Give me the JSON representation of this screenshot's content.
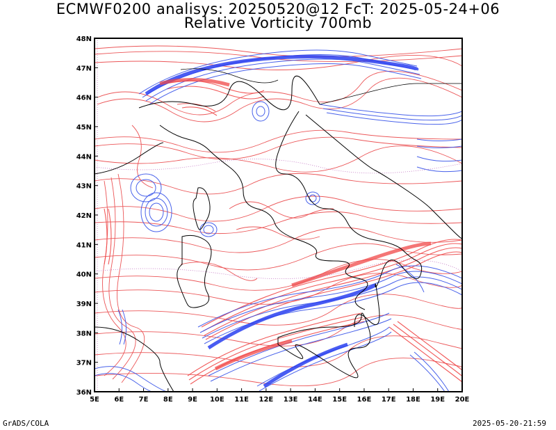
{
  "title": {
    "line1": "ECMWF0200 analisys: 20250520@12 FcT: 2025-05-24+06",
    "line2": "Relative Vorticity 700mb"
  },
  "axes": {
    "lon_labels": [
      "5E",
      "6E",
      "7E",
      "8E",
      "9E",
      "10E",
      "11E",
      "12E",
      "13E",
      "14E",
      "15E",
      "16E",
      "17E",
      "18E",
      "19E",
      "20E"
    ],
    "lat_labels": [
      "36N",
      "37N",
      "38N",
      "39N",
      "40N",
      "41N",
      "42N",
      "43N",
      "44N",
      "45N",
      "46N",
      "47N",
      "48N"
    ],
    "lon_range": [
      5,
      20
    ],
    "lat_range": [
      36,
      48
    ]
  },
  "colors": {
    "positive_contours": "#e8383a",
    "negative_contours": "#3450e8",
    "coastline": "#000000",
    "frame": "#000000"
  },
  "footer": {
    "left": "GrADS/COLA",
    "right": "2025-05-20-21:59"
  }
}
